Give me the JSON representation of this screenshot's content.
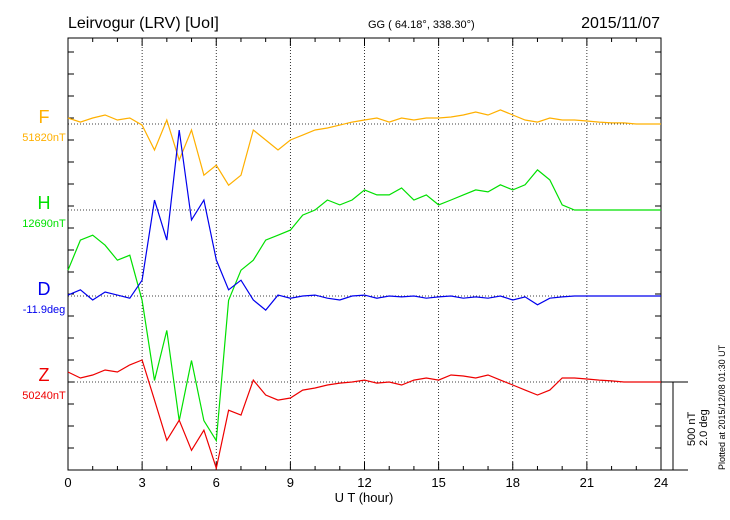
{
  "chart_data": {
    "type": "line",
    "title": "Leirvogur (LRV)  [UoI]",
    "coords": "GG ( 64.18°, 338.30°)",
    "date": "2015/11/07",
    "xlabel": "U T (hour)",
    "xlim": [
      0,
      24
    ],
    "xticks": [
      "0",
      "3",
      "6",
      "9",
      "12",
      "15",
      "18",
      "21",
      "24"
    ],
    "grid": true,
    "scale_label_nt": "500 nT",
    "scale_label_deg": "2.0 deg",
    "plotted": "Plotted at 2015/12/08 01:30 UT",
    "x_step_hours": 0.5,
    "series": [
      {
        "name": "F",
        "baseline_label": "51820nT",
        "color": "#ffb000",
        "unit": "nT",
        "values": [
          34,
          11,
          34,
          51,
          23,
          34,
          -6,
          -148,
          23,
          -205,
          -34,
          -291,
          -234,
          -348,
          -291,
          -34,
          -91,
          -148,
          -91,
          -63,
          -34,
          -23,
          -6,
          11,
          23,
          34,
          11,
          34,
          23,
          34,
          34,
          40,
          51,
          68,
          51,
          80,
          51,
          23,
          11,
          34,
          23,
          23,
          17,
          11,
          6,
          6,
          0,
          0,
          0
        ]
      },
      {
        "name": "H",
        "baseline_label": "12690nT",
        "color": "#00e000",
        "unit": "nT",
        "values": [
          -342,
          -171,
          -143,
          -200,
          -285,
          -257,
          -513,
          -969,
          -684,
          -1197,
          -855,
          -1197,
          -1311,
          -513,
          -342,
          -285,
          -171,
          -143,
          -114,
          -29,
          0,
          57,
          29,
          57,
          114,
          86,
          86,
          125,
          57,
          86,
          29,
          57,
          86,
          114,
          103,
          143,
          114,
          143,
          228,
          171,
          29,
          0,
          0,
          0,
          0,
          0,
          0,
          0,
          0
        ]
      },
      {
        "name": "D",
        "baseline_label": "-11.9deg",
        "color": "#0000ee",
        "unit": "deg",
        "values": [
          0.02,
          0.14,
          -0.09,
          0.09,
          0.02,
          -0.05,
          0.36,
          2.18,
          1.27,
          3.77,
          1.73,
          2.18,
          0.82,
          0.14,
          0.36,
          -0.09,
          -0.32,
          0.02,
          -0.05,
          0,
          0.02,
          -0.05,
          -0.09,
          0,
          0.02,
          -0.05,
          0,
          -0.02,
          0,
          -0.05,
          -0.02,
          0,
          -0.05,
          -0.02,
          -0.05,
          0,
          -0.09,
          -0.02,
          -0.2,
          -0.05,
          -0.02,
          0,
          0,
          0,
          0,
          0,
          0,
          0,
          0
        ]
      },
      {
        "name": "Z",
        "baseline_label": "50240nT",
        "color": "#ee0000",
        "unit": "nT",
        "values": [
          57,
          23,
          40,
          68,
          57,
          97,
          125,
          -103,
          -331,
          -217,
          -388,
          -274,
          -490,
          -160,
          -188,
          11,
          -74,
          -103,
          -91,
          -46,
          -34,
          -17,
          -6,
          0,
          11,
          -6,
          0,
          -17,
          11,
          23,
          11,
          40,
          34,
          23,
          40,
          11,
          -17,
          -46,
          -74,
          -46,
          23,
          23,
          17,
          11,
          6,
          0,
          0,
          0,
          0
        ]
      }
    ]
  }
}
